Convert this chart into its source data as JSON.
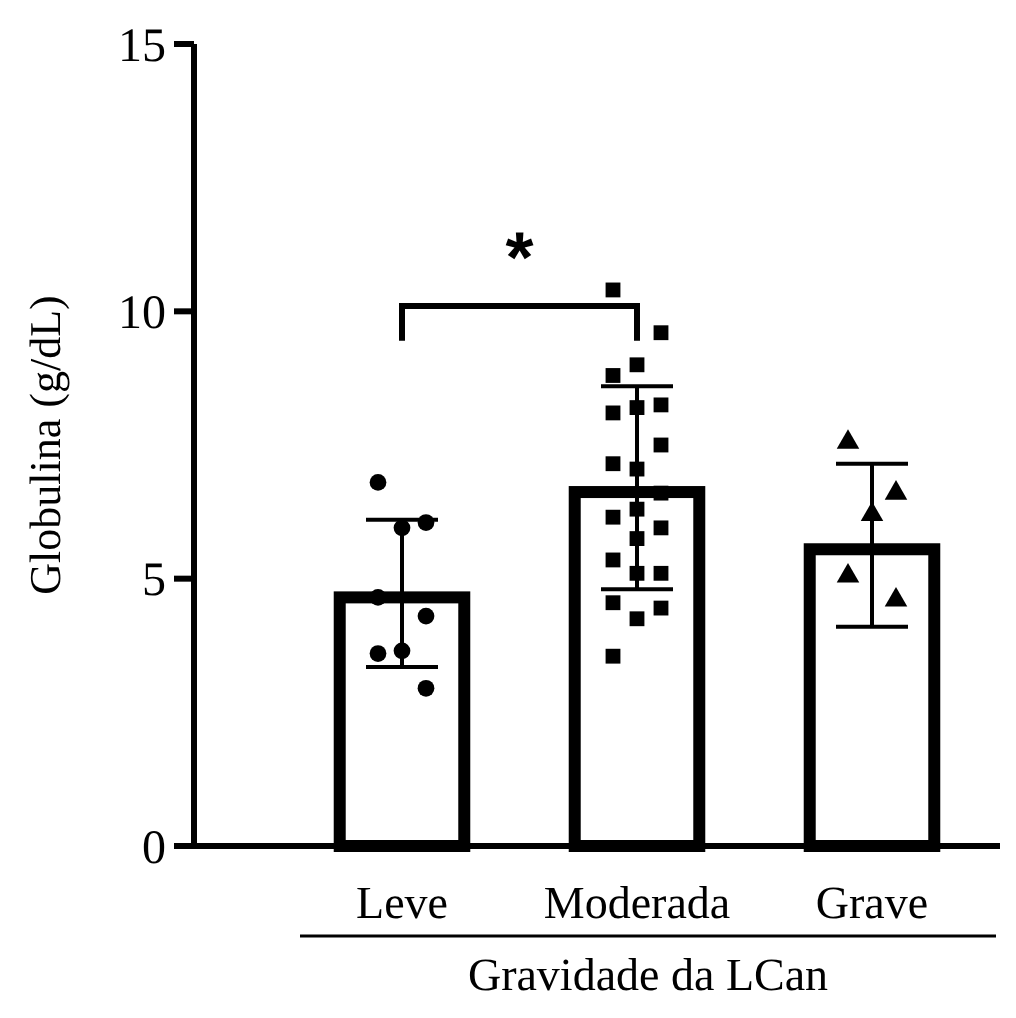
{
  "chart_data": {
    "type": "bar",
    "xlabel": "Gravidade da LCan",
    "ylabel": "Globulina (g/dL)",
    "categories": [
      "Leve",
      "Moderada",
      "Grave"
    ],
    "ylim": [
      0,
      15
    ],
    "yticks": [
      0,
      5,
      10,
      15
    ],
    "grid": false,
    "annotations": [
      "*"
    ],
    "series": [
      {
        "color": "#ffffff",
        "values": [
          4.65,
          6.62,
          5.55
        ],
        "errors": [
          [
            3.35,
            6.1
          ],
          [
            4.8,
            8.6
          ],
          [
            4.1,
            7.15
          ]
        ]
      },
      {
        "type": "scatter",
        "marker": "circle",
        "color": "#000000",
        "x": [
          "Leve",
          "Leve",
          "Leve",
          "Leve",
          "Leve",
          "Leve",
          "Leve",
          "Leve"
        ],
        "values": [
          6.8,
          6.05,
          5.95,
          4.65,
          4.3,
          3.65,
          3.6,
          2.95
        ]
      },
      {
        "type": "scatter",
        "marker": "square",
        "color": "#000000",
        "x": [
          "Moderada",
          "Moderada",
          "Moderada",
          "Moderada",
          "Moderada",
          "Moderada",
          "Moderada",
          "Moderada",
          "Moderada",
          "Moderada",
          "Moderada",
          "Moderada",
          "Moderada",
          "Moderada",
          "Moderada",
          "Moderada",
          "Moderada",
          "Moderada",
          "Moderada",
          "Moderada",
          "Moderada",
          "Moderada"
        ],
        "values": [
          10.4,
          9.6,
          9.0,
          8.8,
          8.25,
          8.2,
          8.1,
          7.5,
          7.05,
          7.15,
          6.6,
          6.3,
          6.15,
          5.95,
          5.75,
          5.35,
          5.1,
          5.1,
          4.55,
          4.45,
          4.25,
          3.55
        ]
      },
      {
        "type": "scatter",
        "marker": "triangle",
        "color": "#000000",
        "x": [
          "Grave",
          "Grave",
          "Grave",
          "Grave",
          "Grave"
        ],
        "values": [
          7.55,
          6.6,
          6.2,
          5.05,
          4.6
        ]
      }
    ]
  }
}
